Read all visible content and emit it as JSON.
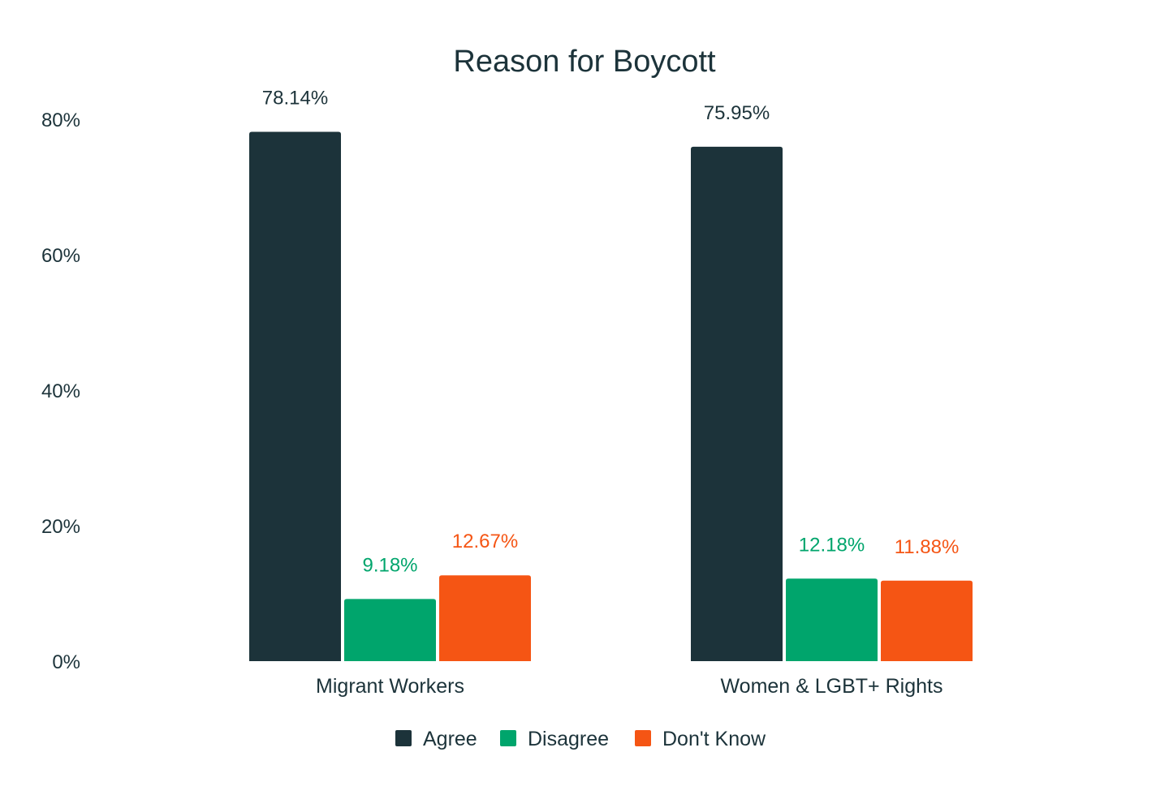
{
  "chart_data": {
    "type": "bar",
    "title": "Reason for Boycott",
    "xlabel": "",
    "ylabel": "",
    "ylim": [
      0,
      80
    ],
    "yticks": [
      "0%",
      "20%",
      "40%",
      "60%",
      "80%"
    ],
    "ytick_values": [
      0,
      20,
      40,
      60,
      80
    ],
    "grid": false,
    "legend_position": "bottom",
    "categories": [
      "Migrant Workers",
      "Women & LGBT+ Rights"
    ],
    "series": [
      {
        "name": "Agree",
        "color": "#1c333a",
        "label_color": "#1c333a",
        "values": [
          78.14,
          75.95
        ],
        "labels": [
          "78.14%",
          "75.95%"
        ]
      },
      {
        "name": "Disagree",
        "color": "#00a56c",
        "label_color": "#00a56c",
        "values": [
          9.18,
          12.18
        ],
        "labels": [
          "9.18%",
          "12.18%"
        ]
      },
      {
        "name": "Don't Know",
        "color": "#f55514",
        "label_color": "#f55514",
        "values": [
          12.67,
          11.88
        ],
        "labels": [
          "12.67%",
          "11.88%"
        ]
      }
    ]
  }
}
